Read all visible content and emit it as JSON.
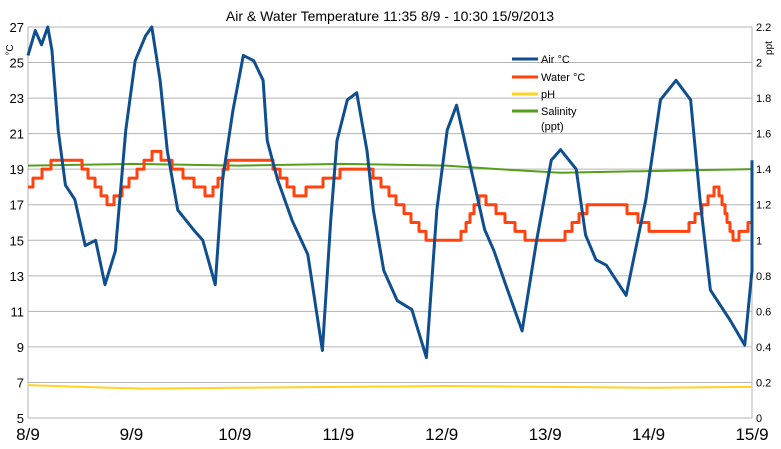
{
  "chart_data": {
    "type": "line",
    "title": "Air & Water Temperature 11:35 8/9 - 10:30 15/9/2013",
    "ylabel": "°C",
    "y2label": "ppt",
    "ylim": [
      5,
      27
    ],
    "y2lim": [
      0,
      2.2
    ],
    "yticks": [
      "5",
      "7",
      "9",
      "11",
      "13",
      "15",
      "17",
      "19",
      "21",
      "23",
      "25",
      "27"
    ],
    "y2ticks": [
      "0",
      "0.2",
      "0.4",
      "0.6",
      "0.8",
      "1",
      "1.2",
      "1.4",
      "1.6",
      "1.8",
      "2",
      "2.2"
    ],
    "xticks": [
      "8/9",
      "9/9",
      "10/9",
      "11/9",
      "12/9",
      "13/9",
      "14/9",
      "15/9"
    ],
    "xlim_day_of_september": [
      8.48,
      15.44
    ],
    "grid": "horizontal",
    "legend_placement": "top-right",
    "series": [
      {
        "name": "Air °C",
        "color": "#0f4f8f",
        "axis": "left",
        "x": [
          8.48,
          8.55,
          8.61,
          8.67,
          8.71,
          8.77,
          8.84,
          8.93,
          9.03,
          9.13,
          9.22,
          9.32,
          9.42,
          9.51,
          9.61,
          9.67,
          9.75,
          9.82,
          9.92,
          10.07,
          10.16,
          10.28,
          10.35,
          10.45,
          10.55,
          10.65,
          10.74,
          10.78,
          10.88,
          11.02,
          11.17,
          11.31,
          11.39,
          11.45,
          11.55,
          11.64,
          11.74,
          11.8,
          11.9,
          12.03,
          12.17,
          12.31,
          12.41,
          12.51,
          12.6,
          12.72,
          12.87,
          12.96,
          13.06,
          13.23,
          13.37,
          13.51,
          13.6,
          13.75,
          13.84,
          13.94,
          14.04,
          14.23,
          14.42,
          14.56,
          14.71,
          14.85,
          14.94,
          15.04,
          15.23,
          15.37,
          15.52,
          15.44
        ],
        "y": [
          25.4,
          26.8,
          26,
          27,
          25.7,
          21.2,
          18.1,
          17.3,
          14.7,
          15,
          12.5,
          14.4,
          21.2,
          25.1,
          26.5,
          27,
          24,
          20,
          16.7,
          15.6,
          15,
          12.5,
          18.4,
          22.3,
          25.4,
          25.1,
          24,
          20.6,
          18.4,
          16.1,
          14.2,
          8.8,
          16.1,
          20.6,
          22.9,
          23.3,
          20,
          16.7,
          13.3,
          11.6,
          11.1,
          8.4,
          16.7,
          21.2,
          22.6,
          19.5,
          15.6,
          14.4,
          12.7,
          9.9,
          15,
          19.5,
          20.1,
          19,
          15.3,
          13.9,
          13.6,
          11.9,
          17.3,
          22.9,
          24,
          22.9,
          17.3,
          12.2,
          10.5,
          9.1,
          13.3,
          19.5
        ]
      },
      {
        "name": "Water °C",
        "color": "#ff420e",
        "axis": "left",
        "x": [
          8.48,
          8.74,
          8.96,
          9.27,
          9.7,
          10.23,
          10.42,
          10.8,
          11.07,
          11.55,
          11.76,
          12.34,
          12.62,
          12.83,
          13.3,
          13.6,
          13.88,
          14.18,
          14.5,
          14.8,
          15.1,
          15.27,
          15.44
        ],
        "y": [
          18,
          19.5,
          19.5,
          17,
          20,
          17.5,
          19.5,
          19.5,
          17.5,
          19,
          19,
          15,
          15,
          17.5,
          15,
          15,
          17,
          17,
          15.5,
          15.5,
          18,
          15,
          16
        ]
      },
      {
        "name": "pH",
        "color": "#ffd320",
        "axis": "left",
        "x": [
          8.48,
          9.0,
          9.6,
          10.5,
          11.5,
          12.5,
          13.5,
          14.5,
          15.44
        ],
        "y": [
          6.85,
          6.75,
          6.65,
          6.7,
          6.75,
          6.8,
          6.75,
          6.7,
          6.75
        ]
      },
      {
        "name": "Salinity (ppt)",
        "color": "#579d1c",
        "axis": "right",
        "x": [
          8.48,
          9.5,
          10.5,
          11.5,
          12.5,
          13.0,
          13.6,
          14.5,
          15.44
        ],
        "y": [
          1.42,
          1.43,
          1.42,
          1.43,
          1.42,
          1.4,
          1.38,
          1.39,
          1.4
        ]
      }
    ]
  }
}
